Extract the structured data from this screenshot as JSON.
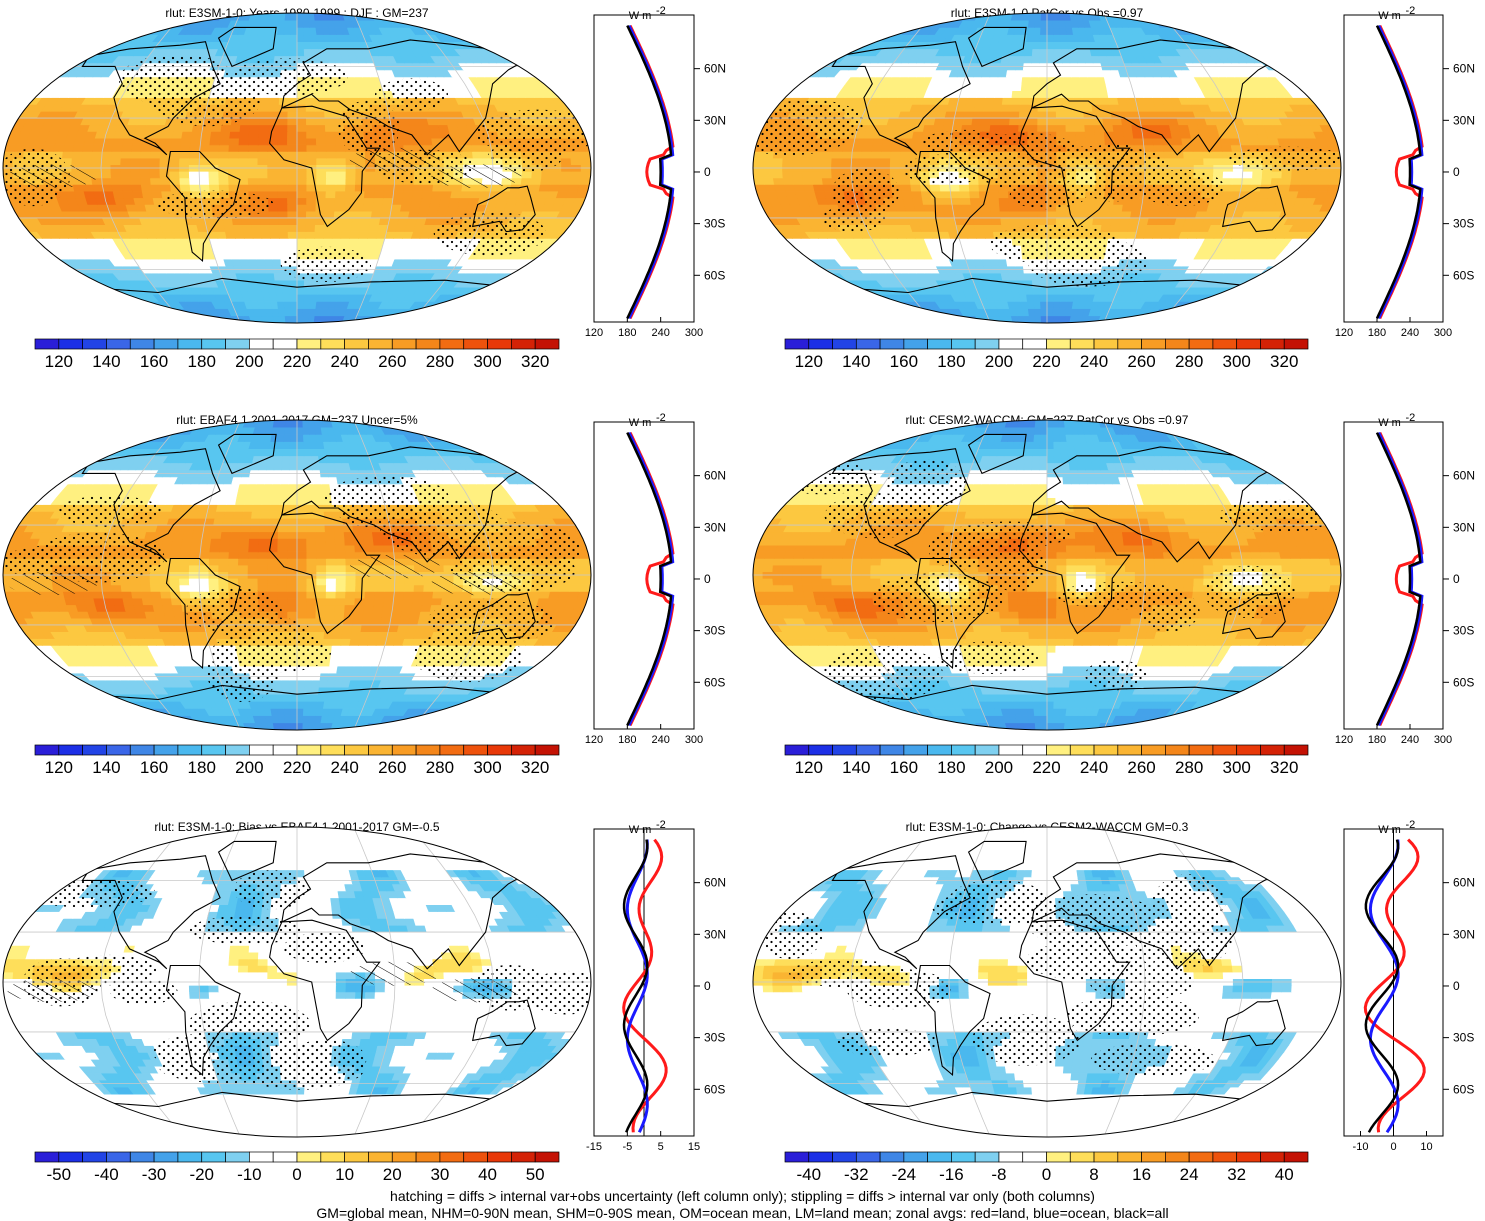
{
  "colors": {
    "land_line": "#ff1a1a",
    "ocean_line": "#1a1aff",
    "all_line": "#000000",
    "outline": "#000000",
    "grid": "#c8c8c8"
  },
  "abs_palette": [
    "#2a1ed8",
    "#1c2fe6",
    "#2244e6",
    "#3a66e8",
    "#3f86e6",
    "#44a2ea",
    "#4ab8ee",
    "#58c6f0",
    "#7fd0f0",
    "#ffffff",
    "#ffffff",
    "#fff080",
    "#fede5a",
    "#fcc840",
    "#fab432",
    "#f89c24",
    "#f4861a",
    "#f26c12",
    "#ee520c",
    "#e83808",
    "#d42206",
    "#c41204"
  ],
  "diff_palette": [
    "#2a1ed8",
    "#1c2fe6",
    "#2244e6",
    "#3a66e8",
    "#3f86e6",
    "#44a2ea",
    "#4ab8ee",
    "#58c6f0",
    "#7fd0f0",
    "#ffffff",
    "#ffffff",
    "#fff080",
    "#fede5a",
    "#fcc840",
    "#fab432",
    "#f89c24",
    "#f4861a",
    "#f26c12",
    "#ee520c",
    "#e83808",
    "#d42206",
    "#c41204"
  ],
  "zonal": {
    "units": "W m",
    "units_sup": "-2",
    "lat_labels": [
      "60N",
      "30N",
      "0",
      "30S",
      "60S"
    ]
  },
  "panels": [
    {
      "id": "p1",
      "title": "rlut: E3SM-1-0: Years 1980-1999 : DJF : GM=237",
      "kind": "abs",
      "hatch": true,
      "colorbar_labels": [
        "120",
        "140",
        "160",
        "180",
        "200",
        "220",
        "240",
        "260",
        "280",
        "300",
        "320"
      ],
      "zonal_ticks": [
        "120",
        "180",
        "240",
        "300"
      ],
      "zonal_range": [
        120,
        300
      ],
      "zonal_ref": null,
      "variant": 0
    },
    {
      "id": "p2",
      "title": "rlut: E3SM-1-0 PatCor vs Obs =0.97",
      "kind": "abs",
      "hatch": false,
      "colorbar_labels": [
        "120",
        "140",
        "160",
        "180",
        "200",
        "220",
        "240",
        "260",
        "280",
        "300",
        "320"
      ],
      "zonal_ticks": [
        "120",
        "180",
        "240",
        "300"
      ],
      "zonal_range": [
        120,
        300
      ],
      "zonal_ref": null,
      "variant": 1
    },
    {
      "id": "p3",
      "title": "rlut: EBAF4.1 2001-2017 GM=237 Uncer=5%",
      "kind": "abs",
      "hatch": true,
      "colorbar_labels": [
        "120",
        "140",
        "160",
        "180",
        "200",
        "220",
        "240",
        "260",
        "280",
        "300",
        "320"
      ],
      "zonal_ticks": [
        "120",
        "180",
        "240",
        "300"
      ],
      "zonal_range": [
        120,
        300
      ],
      "zonal_ref": null,
      "variant": 2
    },
    {
      "id": "p4",
      "title": "rlut: CESM2-WACCM: GM=237 PatCor vs Obs =0.97",
      "kind": "abs",
      "hatch": false,
      "colorbar_labels": [
        "120",
        "140",
        "160",
        "180",
        "200",
        "220",
        "240",
        "260",
        "280",
        "300",
        "320"
      ],
      "zonal_ticks": [
        "120",
        "180",
        "240",
        "300"
      ],
      "zonal_range": [
        120,
        300
      ],
      "zonal_ref": null,
      "variant": 3
    },
    {
      "id": "p5",
      "title": "rlut: E3SM-1-0: Bias vs EBAF4.1 2001-2017 GM=-0.5",
      "kind": "diff",
      "hatch": true,
      "colorbar_labels": [
        "-50",
        "-40",
        "-30",
        "-20",
        "-10",
        "0",
        "10",
        "20",
        "30",
        "40",
        "50"
      ],
      "zonal_ticks": [
        "-15",
        "-5",
        "5",
        "15"
      ],
      "zonal_range": [
        -15,
        15
      ],
      "zonal_ref": 0,
      "variant": 4
    },
    {
      "id": "p6",
      "title": "rlut: E3SM-1-0: Change vs CESM2-WACCM GM=0.3",
      "kind": "diff",
      "hatch": false,
      "colorbar_labels": [
        "-40",
        "-32",
        "-24",
        "-16",
        "-8",
        "0",
        "8",
        "16",
        "24",
        "32",
        "40"
      ],
      "zonal_ticks": [
        "-10",
        "0",
        "10"
      ],
      "zonal_range": [
        -15,
        15
      ],
      "zonal_ref": 0,
      "variant": 5
    }
  ],
  "footer": {
    "line1": "hatching = diffs > internal var+obs uncertainty (left column only); stippling = diffs > internal var only (both columns)",
    "line2": "GM=global mean, NHM=0-90N mean, SHM=0-90S mean, OM=ocean mean, LM=land mean; zonal avgs: red=land, blue=ocean, black=all"
  }
}
